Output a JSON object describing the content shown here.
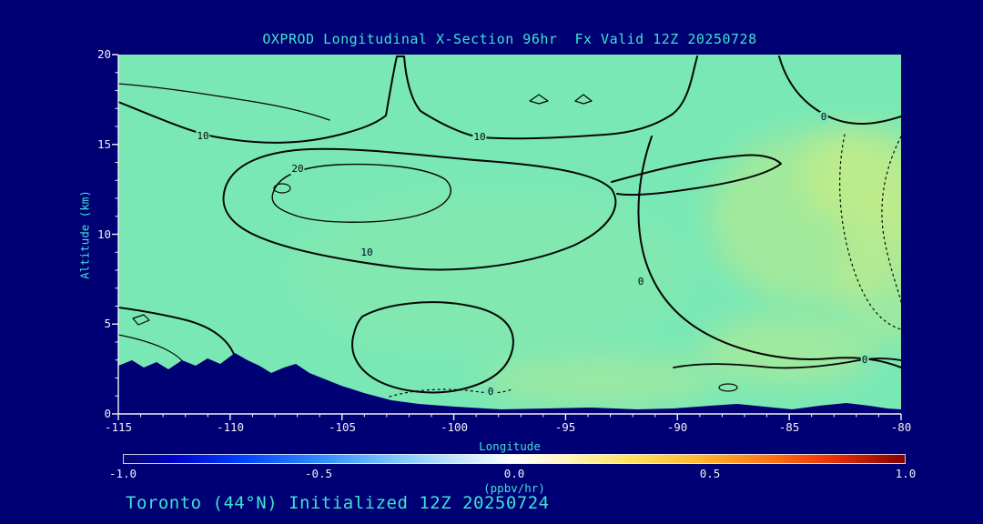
{
  "header": {
    "title": "OXPROD Longitudinal X-Section 96hr  Fx Valid 12Z 20250728"
  },
  "footer": {
    "caption": "Toronto (44°N) Initialized 12Z 20250724"
  },
  "axes": {
    "x_label": "Longitude",
    "y_label": "Altitude (km)",
    "x_tick_labels": [
      "-115",
      "-110",
      "-105",
      "-100",
      "-95",
      "-90",
      "-85",
      "-80"
    ],
    "y_tick_labels": [
      "20",
      "15",
      "10",
      "5",
      "0"
    ]
  },
  "colorbar": {
    "tick_labels": [
      "-1.0",
      "-0.5",
      "0.0",
      "0.5",
      "1.0"
    ],
    "units": "(ppbv/hr)",
    "range": [
      -1.0,
      1.0
    ]
  },
  "contour_label_texts": [
    "10",
    "10",
    "20",
    "10",
    "0",
    "0",
    "0",
    "0"
  ],
  "colors": {
    "background": "#000075",
    "plot_fill": "#7AE8B5",
    "title_text": "#3FE2CE",
    "tick_text": "#F0F0F0",
    "contour_line": "#000000",
    "warm_patch": "#C9EA84"
  },
  "chart_data": {
    "type": "heatmap",
    "subtype": "filled-contour longitudinal cross-section with labeled line contours",
    "title": "OXPROD Longitudinal X-Section 96hr  Fx Valid 12Z 20250728",
    "xlabel": "Longitude",
    "ylabel": "Altitude (km)",
    "xlim": [
      -115,
      -80
    ],
    "ylim": [
      0,
      20
    ],
    "x_ticks": [
      -115,
      -110,
      -105,
      -100,
      -95,
      -90,
      -85,
      -80
    ],
    "y_ticks": [
      0,
      5,
      10,
      15,
      20
    ],
    "contour_levels": [
      0,
      10,
      20
    ],
    "negative_contour_style": "dotted",
    "colorbar": {
      "range": [
        -1.0,
        1.0
      ],
      "ticks": [
        -1.0,
        -0.5,
        0.0,
        0.5,
        1.0
      ],
      "units": "(ppbv/hr)",
      "palette": "blue-white-red diverging"
    },
    "shading_summary": "nearly uniform weakly positive aqua-green shading (~0.1-0.3 ppbv/hr) with slightly higher yellow-green values east of -90 near 8-14 km and near the surface east of -97",
    "approx_grid": {
      "longitudes": [
        -115,
        -110,
        -105,
        -100,
        -95,
        -90,
        -85,
        -80
      ],
      "altitudes_km": [
        2.5,
        7.5,
        12.5,
        17.5
      ],
      "values_by_altitude": [
        {
          "altitude_km": 17.5,
          "values": [
            10,
            11,
            9,
            11,
            9,
            6,
            2,
            0
          ]
        },
        {
          "altitude_km": 12.5,
          "values": [
            6,
            14,
            22,
            17,
            13,
            6,
            1,
            -1
          ]
        },
        {
          "altitude_km": 7.5,
          "values": [
            3,
            8,
            13,
            11,
            9,
            4,
            1,
            0
          ]
        },
        {
          "altitude_km": 2.5,
          "values": [
            1,
            3,
            6,
            9,
            4,
            1,
            0,
            0
          ]
        }
      ]
    },
    "features": [
      "closed 20-contour maximum centered near 104W at 12-13 km altitude",
      "broad 10-contour envelope spanning roughly 113W-87W between 8 and 17 km",
      "0-contour descending along the eastern side near 85W-80W with dotted (negative) contours near the right edge",
      "dark terrain silhouette rising to about 2.5 km between 115W and 105W, low terrain eastward"
    ],
    "station": "Toronto (44°N)",
    "init": "Initialized 12Z 20250724",
    "forecast_hour": "96hr",
    "valid": "12Z 20250728"
  }
}
